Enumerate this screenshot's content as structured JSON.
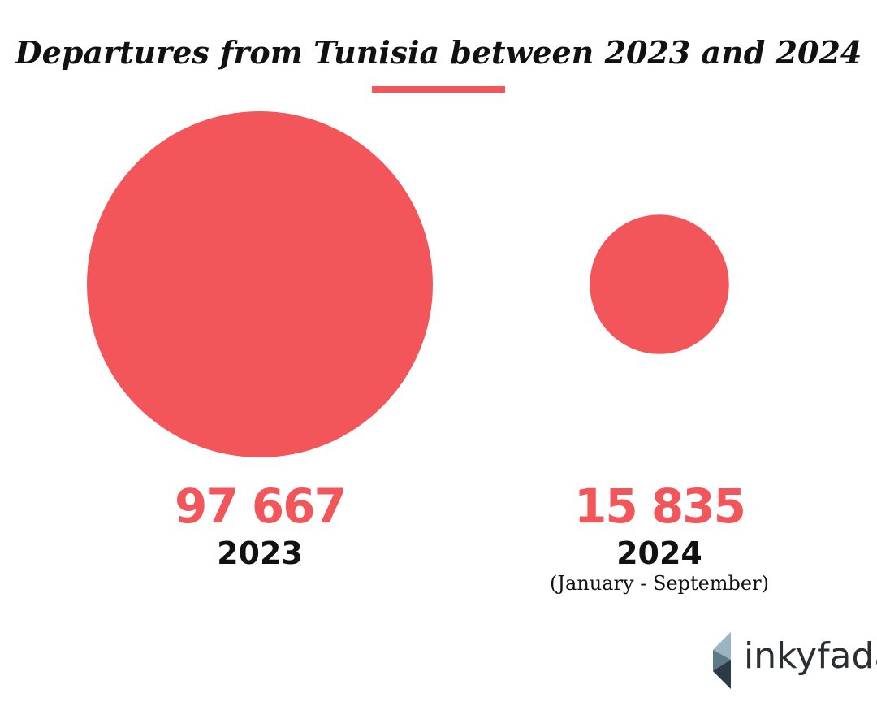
{
  "chart_data": {
    "type": "bubble",
    "title": "Departures from Tunisia between 2023 and 2024",
    "categories": [
      "2023",
      "2024"
    ],
    "values": [
      97667,
      15835
    ],
    "value_labels": [
      "97 667",
      "15 835"
    ],
    "category_notes": [
      null,
      "(January - September)"
    ],
    "color": "#f2565a"
  },
  "logo": {
    "text": "inkyfada"
  }
}
